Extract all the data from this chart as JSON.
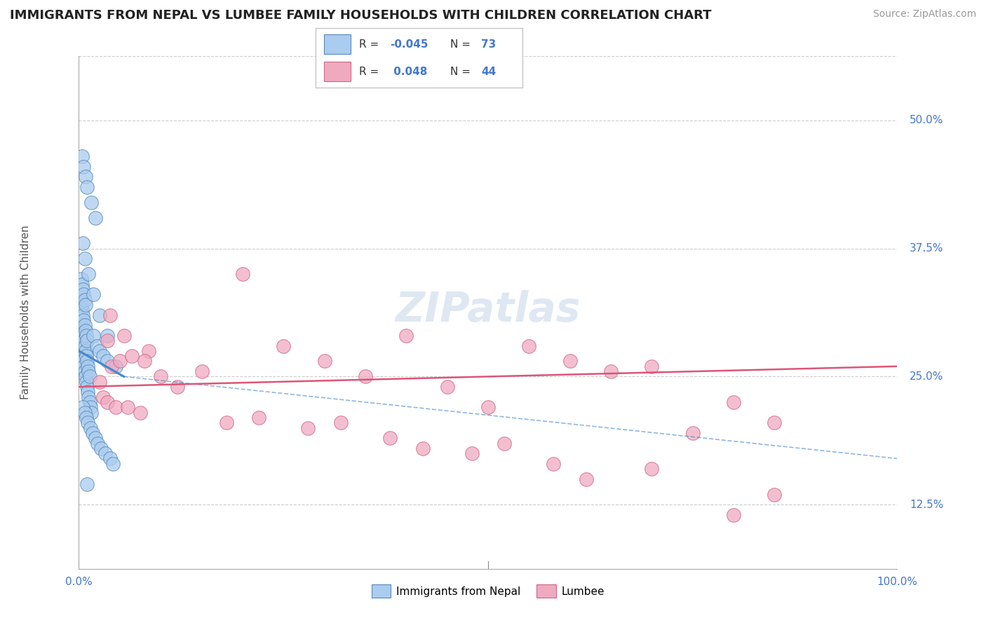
{
  "title": "IMMIGRANTS FROM NEPAL VS LUMBEE FAMILY HOUSEHOLDS WITH CHILDREN CORRELATION CHART",
  "source_text": "Source: ZipAtlas.com",
  "ylabel": "Family Households with Children",
  "xlim": [
    0.0,
    100.0
  ],
  "ylim": [
    6.25,
    56.25
  ],
  "ytick_vals": [
    12.5,
    25.0,
    37.5,
    50.0
  ],
  "ytick_labels": [
    "12.5%",
    "25.0%",
    "37.5%",
    "50.0%"
  ],
  "color_blue": "#aaccee",
  "color_pink": "#f0aac0",
  "color_blue_edge": "#5588bb",
  "color_pink_edge": "#cc6688",
  "color_blue_line": "#4488cc",
  "color_pink_line": "#dd5577",
  "color_blue_text": "#4477cc",
  "watermark": "ZIPatlas",
  "background_color": "#ffffff",
  "grid_color": "#cccccc",
  "nepal_x": [
    0.2,
    0.3,
    0.4,
    0.5,
    0.6,
    0.7,
    0.8,
    0.9,
    1.0,
    1.1,
    1.2,
    1.3,
    1.4,
    1.5,
    0.2,
    0.3,
    0.4,
    0.5,
    0.6,
    0.7,
    0.8,
    0.9,
    1.0,
    1.1,
    1.2,
    1.3,
    0.2,
    0.3,
    0.4,
    0.5,
    0.6,
    0.7,
    0.8,
    0.9,
    1.0,
    0.3,
    0.4,
    0.5,
    0.6,
    0.7,
    0.8,
    1.8,
    2.2,
    2.5,
    3.0,
    3.5,
    4.5,
    0.5,
    0.7,
    0.9,
    1.1,
    1.4,
    1.7,
    2.0,
    2.3,
    2.7,
    3.2,
    3.8,
    4.2,
    0.4,
    0.6,
    0.8,
    1.0,
    1.5,
    2.0,
    0.5,
    0.7,
    1.2,
    1.8,
    2.5,
    3.5,
    1.0
  ],
  "nepal_y": [
    28.0,
    27.5,
    27.0,
    26.5,
    26.0,
    25.5,
    25.0,
    24.5,
    24.0,
    23.5,
    23.0,
    22.5,
    22.0,
    21.5,
    30.5,
    30.0,
    29.5,
    29.0,
    28.5,
    28.0,
    27.5,
    27.0,
    26.5,
    26.0,
    25.5,
    25.0,
    32.5,
    32.0,
    31.5,
    31.0,
    30.5,
    30.0,
    29.5,
    29.0,
    28.5,
    34.5,
    34.0,
    33.5,
    33.0,
    32.5,
    32.0,
    29.0,
    28.0,
    27.5,
    27.0,
    26.5,
    26.0,
    22.0,
    21.5,
    21.0,
    20.5,
    20.0,
    19.5,
    19.0,
    18.5,
    18.0,
    17.5,
    17.0,
    16.5,
    46.5,
    45.5,
    44.5,
    43.5,
    42.0,
    40.5,
    38.0,
    36.5,
    35.0,
    33.0,
    31.0,
    29.0,
    14.5
  ],
  "lumbee_x": [
    3.5,
    3.8,
    5.5,
    8.5,
    4.0,
    5.0,
    6.5,
    8.0,
    2.5,
    3.0,
    3.5,
    4.5,
    6.0,
    7.5,
    15.0,
    20.0,
    25.0,
    30.0,
    35.0,
    40.0,
    45.0,
    50.0,
    55.0,
    60.0,
    65.0,
    70.0,
    75.0,
    80.0,
    85.0,
    10.0,
    12.0,
    18.0,
    22.0,
    28.0,
    32.0,
    38.0,
    42.0,
    48.0,
    52.0,
    58.0,
    62.0,
    70.0,
    80.0,
    85.0
  ],
  "lumbee_y": [
    28.5,
    31.0,
    29.0,
    27.5,
    26.0,
    26.5,
    27.0,
    26.5,
    24.5,
    23.0,
    22.5,
    22.0,
    22.0,
    21.5,
    25.5,
    35.0,
    28.0,
    26.5,
    25.0,
    29.0,
    24.0,
    22.0,
    28.0,
    26.5,
    25.5,
    26.0,
    19.5,
    22.5,
    20.5,
    25.0,
    24.0,
    20.5,
    21.0,
    20.0,
    20.5,
    19.0,
    18.0,
    17.5,
    18.5,
    16.5,
    15.0,
    16.0,
    11.5,
    13.5
  ],
  "nepal_line_x0": 0.0,
  "nepal_line_x1": 5.5,
  "nepal_line_y0": 27.5,
  "nepal_line_y1": 25.0,
  "nepal_dash_x0": 5.5,
  "nepal_dash_x1": 100.0,
  "nepal_dash_y0": 25.0,
  "nepal_dash_y1": 17.0,
  "lumbee_line_y0": 24.0,
  "lumbee_line_y1": 26.0
}
